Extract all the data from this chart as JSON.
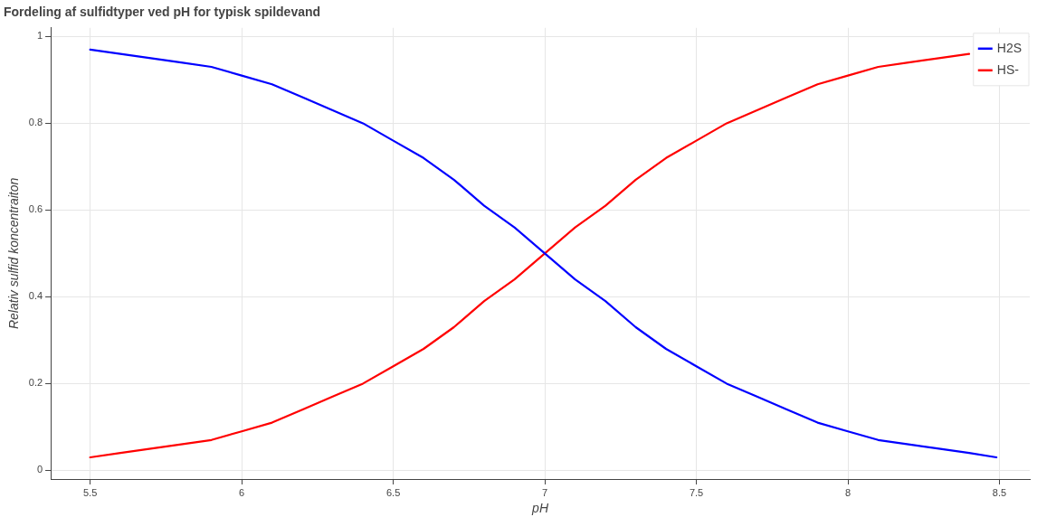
{
  "chart_data": {
    "type": "line",
    "title": "Fordeling af sulfidtyper ved pH for typisk spildevand",
    "xlabel": "pH",
    "ylabel": "Relativ sulfid koncentraiton",
    "x": [
      5.5,
      5.6,
      5.7,
      5.8,
      5.9,
      6.0,
      6.1,
      6.2,
      6.3,
      6.4,
      6.5,
      6.6,
      6.7,
      6.8,
      6.9,
      7.0,
      7.1,
      7.2,
      7.3,
      7.4,
      7.5,
      7.6,
      7.7,
      7.8,
      7.9,
      8.0,
      8.1,
      8.2,
      8.3,
      8.4,
      8.49
    ],
    "series": [
      {
        "name": "H2S",
        "color": "#0000ff",
        "values": [
          0.97,
          0.96,
          0.95,
          0.94,
          0.93,
          0.91,
          0.89,
          0.86,
          0.83,
          0.8,
          0.76,
          0.72,
          0.67,
          0.61,
          0.56,
          0.5,
          0.44,
          0.39,
          0.33,
          0.28,
          0.24,
          0.2,
          0.17,
          0.14,
          0.11,
          0.09,
          0.07,
          0.06,
          0.05,
          0.04,
          0.03
        ]
      },
      {
        "name": "HS-",
        "color": "#ff0000",
        "values": [
          0.03,
          0.04,
          0.05,
          0.06,
          0.07,
          0.09,
          0.11,
          0.14,
          0.17,
          0.2,
          0.24,
          0.28,
          0.33,
          0.39,
          0.44,
          0.5,
          0.56,
          0.61,
          0.67,
          0.72,
          0.76,
          0.8,
          0.83,
          0.86,
          0.89,
          0.91,
          0.93,
          0.94,
          0.95,
          0.96,
          null
        ]
      }
    ],
    "xlim": [
      5.37,
      8.6
    ],
    "ylim": [
      -0.02,
      1.02
    ],
    "xticks": [
      5.5,
      6,
      6.5,
      7,
      7.5,
      8,
      8.5
    ],
    "yticks": [
      0,
      0.2,
      0.4,
      0.6,
      0.8,
      1
    ],
    "grid": true,
    "legend": "top right",
    "marker": "none",
    "line_style": "solid"
  }
}
